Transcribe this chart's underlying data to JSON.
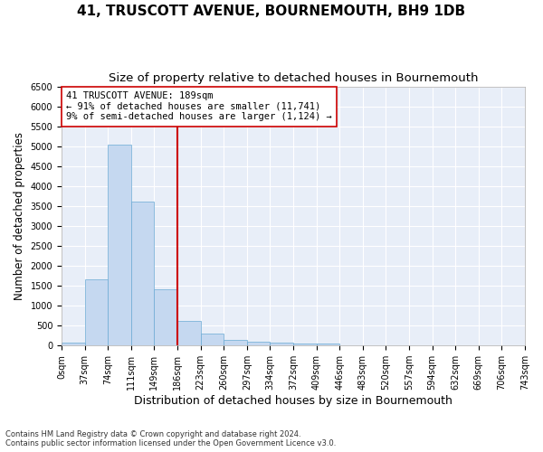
{
  "title": "41, TRUSCOTT AVENUE, BOURNEMOUTH, BH9 1DB",
  "subtitle": "Size of property relative to detached houses in Bournemouth",
  "xlabel": "Distribution of detached houses by size in Bournemouth",
  "ylabel": "Number of detached properties",
  "footnote1": "Contains HM Land Registry data © Crown copyright and database right 2024.",
  "footnote2": "Contains public sector information licensed under the Open Government Licence v3.0.",
  "bin_labels": [
    "0sqm",
    "37sqm",
    "74sqm",
    "111sqm",
    "149sqm",
    "186sqm",
    "223sqm",
    "260sqm",
    "297sqm",
    "334sqm",
    "372sqm",
    "409sqm",
    "446sqm",
    "483sqm",
    "520sqm",
    "557sqm",
    "594sqm",
    "632sqm",
    "669sqm",
    "706sqm",
    "743sqm"
  ],
  "bar_values": [
    75,
    1650,
    5050,
    3600,
    1400,
    620,
    290,
    140,
    100,
    75,
    50,
    50,
    0,
    0,
    0,
    0,
    0,
    0,
    0,
    0
  ],
  "bar_color": "#c5d8f0",
  "bar_edge_color": "#6aaad4",
  "vline_x": 5,
  "vline_color": "#cc0000",
  "annotation_title": "41 TRUSCOTT AVENUE: 189sqm",
  "annotation_line1": "← 91% of detached houses are smaller (11,741)",
  "annotation_line2": "9% of semi-detached houses are larger (1,124) →",
  "ylim": [
    0,
    6500
  ],
  "yticks": [
    0,
    500,
    1000,
    1500,
    2000,
    2500,
    3000,
    3500,
    4000,
    4500,
    5000,
    5500,
    6000,
    6500
  ],
  "bg_color": "#e8eef8",
  "grid_color": "white",
  "title_fontsize": 11,
  "subtitle_fontsize": 9.5,
  "tick_fontsize": 7,
  "ylabel_fontsize": 8.5,
  "xlabel_fontsize": 9,
  "annotation_fontsize": 7.5,
  "footnote_fontsize": 6.0
}
